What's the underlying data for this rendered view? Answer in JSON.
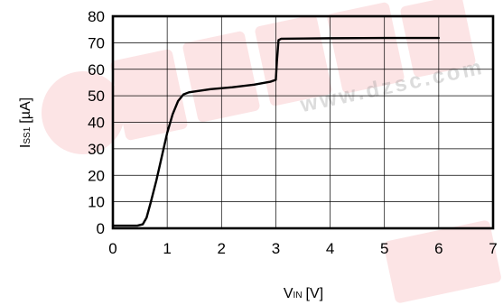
{
  "chart_data": {
    "type": "line",
    "xlabel": "V",
    "xlabel_sub": "IN",
    "xlabel_unit": "[V]",
    "ylabel": "I",
    "ylabel_sub": "SS1",
    "ylabel_unit": "[µA]",
    "xlim": [
      0,
      7
    ],
    "ylim": [
      0,
      80
    ],
    "x_ticks": [
      0,
      1,
      2,
      3,
      4,
      5,
      6,
      7
    ],
    "y_ticks": [
      0,
      10,
      20,
      30,
      40,
      50,
      60,
      70,
      80
    ],
    "grid": true,
    "series": [
      {
        "x": [
          0,
          0.45,
          0.55,
          0.62,
          0.7,
          0.8,
          0.9,
          1.0,
          1.1,
          1.2,
          1.3,
          1.4,
          1.5,
          1.8,
          2.2,
          2.6,
          2.9,
          3.0,
          3.02,
          3.05,
          3.1,
          3.5,
          4.0,
          5.0,
          6.0
        ],
        "y": [
          1,
          1,
          1.5,
          4,
          10,
          18,
          27,
          36,
          43,
          48,
          50.5,
          51.3,
          51.6,
          52.5,
          53.2,
          54.2,
          55.3,
          56,
          63,
          71,
          71.5,
          71.6,
          71.7,
          71.8,
          71.8
        ],
        "color": "#000000"
      }
    ]
  },
  "watermark": {
    "url_text": "www.dzsc.com",
    "color": "#e8535a"
  }
}
